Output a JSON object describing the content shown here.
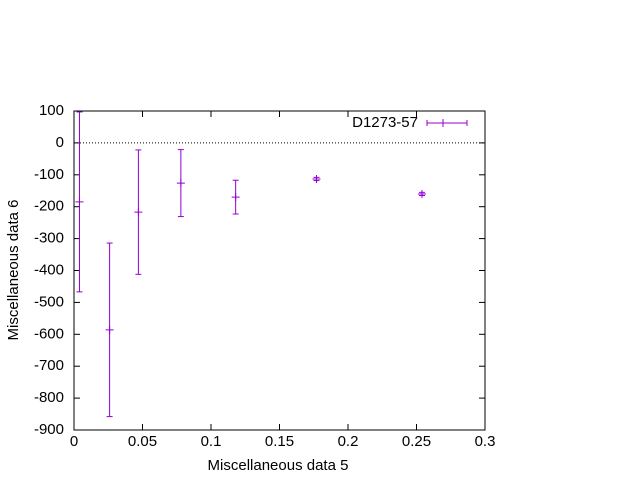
{
  "chart_data": {
    "type": "errorbar",
    "xlabel": "Miscellaneous data 5",
    "ylabel": "Miscellaneous data 6",
    "series": [
      {
        "name": "D1273-57",
        "color": "#9400d3",
        "x": [
          0.004,
          0.026,
          0.047,
          0.078,
          0.118,
          0.177,
          0.254
        ],
        "values": [
          -185,
          -586,
          -217,
          -126,
          -170,
          -113,
          -160
        ],
        "errors": [
          282,
          272,
          195,
          105,
          53,
          5,
          5
        ]
      }
    ],
    "xlim": [
      0,
      0.3
    ],
    "xticks": [
      0,
      0.05,
      0.1,
      0.15,
      0.2,
      0.25,
      0.3
    ],
    "ylim": [
      -900,
      100
    ],
    "yticks": [
      -900,
      -800,
      -700,
      -600,
      -500,
      -400,
      -300,
      -200,
      -100,
      0,
      100
    ],
    "zero_line": true,
    "legend": "top-right"
  }
}
